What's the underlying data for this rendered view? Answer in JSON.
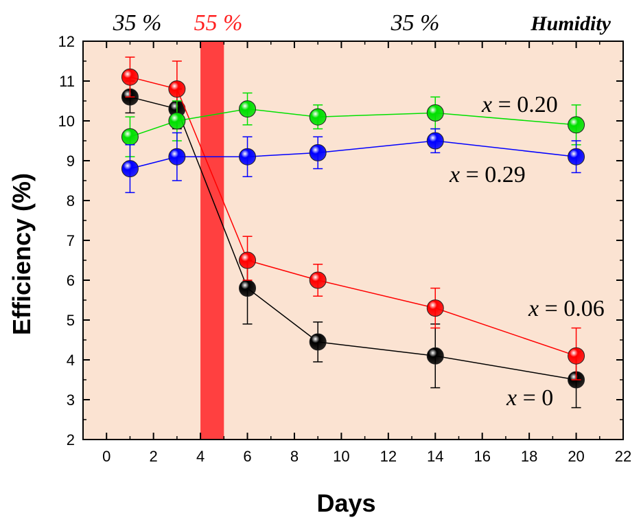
{
  "chart_data": {
    "type": "scatter",
    "xlabel": "Days",
    "ylabel": "Efficiency (%)",
    "xlim": [
      -1,
      22
    ],
    "ylim": [
      2,
      12
    ],
    "x_ticks": [
      0,
      2,
      4,
      6,
      8,
      10,
      12,
      14,
      16,
      18,
      20,
      22
    ],
    "y_ticks": [
      2,
      3,
      4,
      5,
      6,
      7,
      8,
      9,
      10,
      11,
      12
    ],
    "background_color": "#fbe3d2",
    "humidity_band": {
      "x_start": 4,
      "x_end": 5,
      "color": "#ff4040"
    },
    "humidity_labels": [
      {
        "text": "35 %",
        "color": "#000000"
      },
      {
        "text": "55 %",
        "color": "#ff2020"
      },
      {
        "text": "35 %",
        "color": "#000000"
      }
    ],
    "humidity_title": "Humidity",
    "x": [
      1,
      3,
      6,
      9,
      14,
      20
    ],
    "series": [
      {
        "label": "x = 0",
        "color": "#000000",
        "values": [
          10.6,
          10.3,
          5.8,
          4.45,
          4.1,
          3.5
        ],
        "err_low": [
          10.2,
          9.8,
          4.9,
          3.95,
          3.3,
          2.8
        ],
        "err_high": [
          11.0,
          10.8,
          6.5,
          4.95,
          4.9,
          4.2
        ]
      },
      {
        "label": "x = 0.06",
        "color": "#ff0000",
        "values": [
          11.1,
          10.8,
          6.5,
          6.0,
          5.3,
          4.1
        ],
        "err_low": [
          10.6,
          10.1,
          6.0,
          5.6,
          4.8,
          3.5
        ],
        "err_high": [
          11.6,
          11.5,
          7.1,
          6.4,
          5.8,
          4.8
        ]
      },
      {
        "label": "x = 0.20",
        "color": "#00e000",
        "values": [
          9.6,
          10.0,
          10.3,
          10.1,
          10.2,
          9.9
        ],
        "err_low": [
          9.1,
          9.5,
          9.9,
          9.8,
          9.8,
          9.4
        ],
        "err_high": [
          10.1,
          10.5,
          10.7,
          10.4,
          10.6,
          10.4
        ]
      },
      {
        "label": "x = 0.29",
        "color": "#0000ff",
        "values": [
          8.8,
          9.1,
          9.1,
          9.2,
          9.5,
          9.1
        ],
        "err_low": [
          8.2,
          8.5,
          8.6,
          8.8,
          9.2,
          8.7
        ],
        "err_high": [
          9.4,
          9.7,
          9.6,
          9.6,
          9.8,
          9.5
        ]
      }
    ],
    "annotations": [
      {
        "var": "x",
        "rest": " = 0.20"
      },
      {
        "var": "x",
        "rest": " = 0.29"
      },
      {
        "var": "x",
        "rest": " = 0.06"
      },
      {
        "var": "x",
        "rest": " = 0"
      }
    ]
  }
}
